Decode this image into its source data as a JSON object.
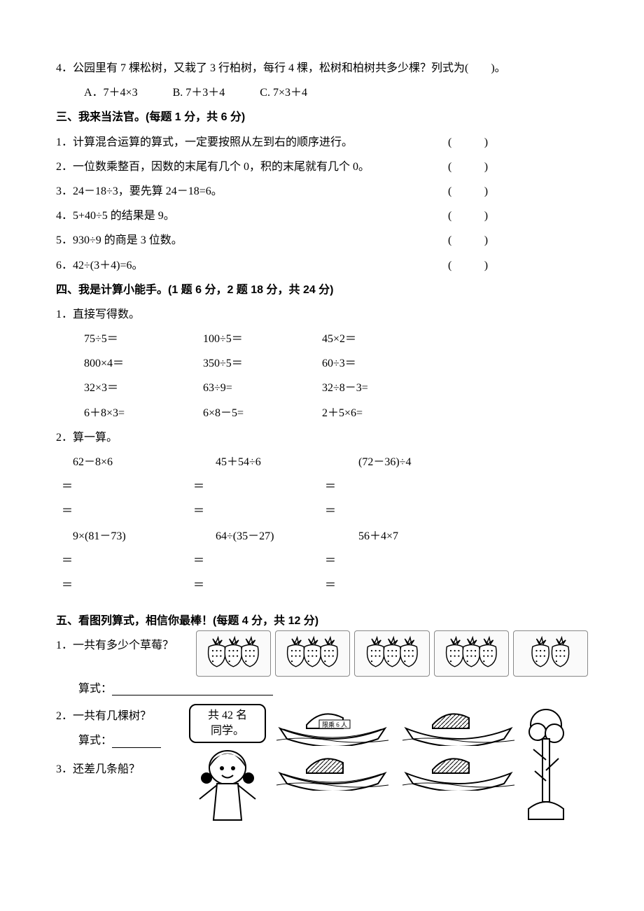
{
  "q2_4": {
    "text": "4．公园里有 7 棵松树，又栽了 3 行柏树，每行 4 棵，松树和柏树共多少棵？列式为(　　)。",
    "opts": {
      "a": "A．7＋4×3",
      "b": "B. 7＋3＋4",
      "c": "C. 7×3＋4"
    }
  },
  "s3": {
    "title": "三、我来当法官。(每题 1 分，共 6 分)",
    "items": [
      "1．计算混合运算的算式，一定要按照从左到右的顺序进行。",
      "2．一位数乘整百，因数的末尾有几个 0，积的末尾就有几个 0。",
      "3．24－18÷3，要先算 24－18=6。",
      "4．5+40÷5 的结果是 9。",
      "5．930÷9 的商是 3 位数。",
      "6．42÷(3＋4)=6。"
    ],
    "paren": "(　　)"
  },
  "s4": {
    "title": "四、我是计算小能手。(1 题 6 分，2 题 18 分，共 24 分)",
    "p1": "1．直接写得数。",
    "grid": [
      [
        "75÷5＝",
        "100÷5＝",
        "45×2＝"
      ],
      [
        "800×4＝",
        "350÷5＝",
        "60÷3＝"
      ],
      [
        "32×3＝",
        "63÷9=",
        "32÷8－3="
      ],
      [
        "6＋8×3=",
        "6×8－5=",
        "2＋5×6="
      ]
    ],
    "p2": "2．算一算。",
    "work": [
      [
        "62－8×6",
        "45＋54÷6",
        "(72－36)÷4"
      ],
      [
        "9×(81－73)",
        "64÷(35－27)",
        "56＋4×7"
      ]
    ],
    "eq": "＝"
  },
  "s5": {
    "title": "五、看图列算式，相信你最棒！(每题 4 分，共 12 分)",
    "q1": "1．一共有多少个草莓？",
    "q1_label": "算式：",
    "q2": "2．一共有几棵树？",
    "q2_label": "算式：",
    "q3": "3．还差几条船？",
    "bubble_l1": "共 42 名",
    "bubble_l2": "同学。",
    "boat_cap": "限乘 6 人",
    "strawberry_panels": [
      3,
      3,
      3,
      3,
      2
    ]
  }
}
